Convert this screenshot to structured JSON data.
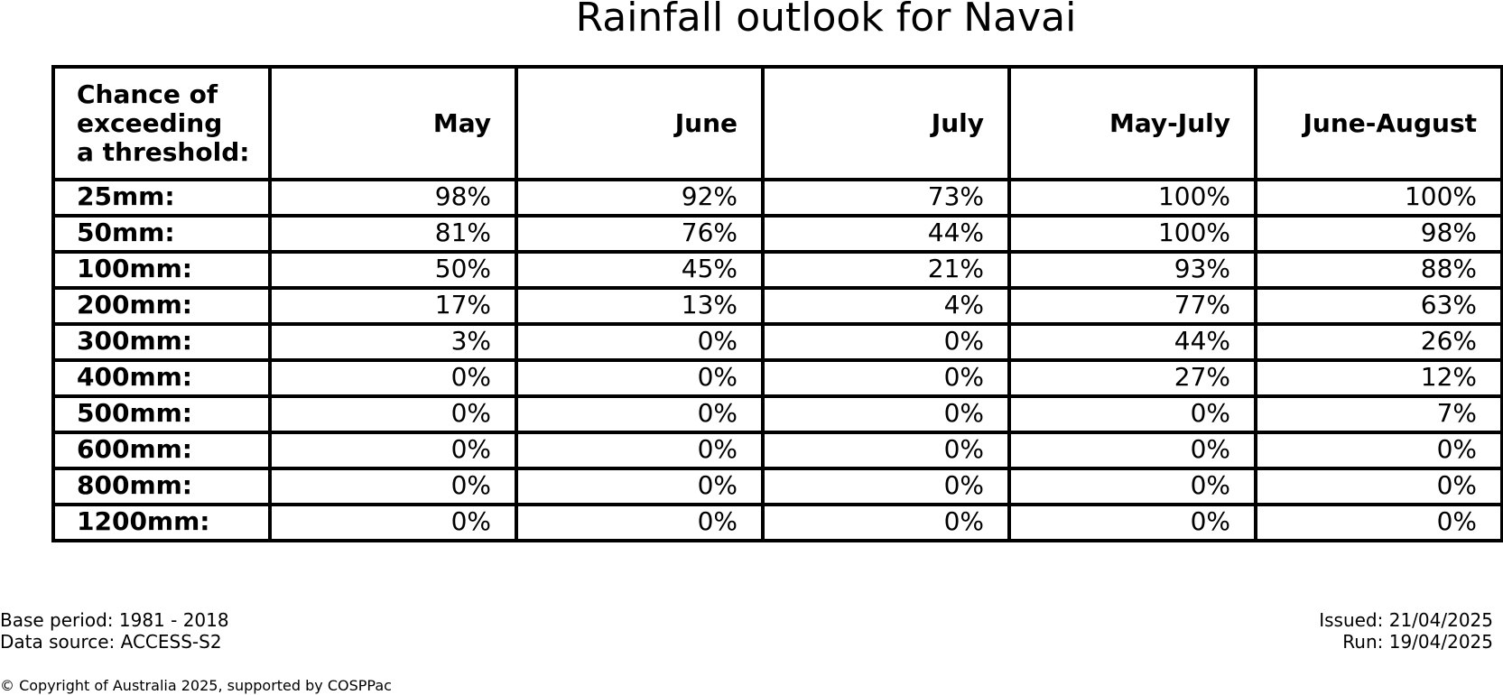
{
  "chart_data": {
    "type": "table",
    "title": "Rainfall outlook for Navai",
    "corner_header": [
      "Chance of",
      "exceeding",
      "a threshold:"
    ],
    "columns": [
      "May",
      "June",
      "July",
      "May-July",
      "June-August"
    ],
    "rows": [
      {
        "threshold": "25mm:",
        "values": [
          "98%",
          "92%",
          "73%",
          "100%",
          "100%"
        ]
      },
      {
        "threshold": "50mm:",
        "values": [
          "81%",
          "76%",
          "44%",
          "100%",
          "98%"
        ]
      },
      {
        "threshold": "100mm:",
        "values": [
          "50%",
          "45%",
          "21%",
          "93%",
          "88%"
        ]
      },
      {
        "threshold": "200mm:",
        "values": [
          "17%",
          "13%",
          "4%",
          "77%",
          "63%"
        ]
      },
      {
        "threshold": "300mm:",
        "values": [
          "3%",
          "0%",
          "0%",
          "44%",
          "26%"
        ]
      },
      {
        "threshold": "400mm:",
        "values": [
          "0%",
          "0%",
          "0%",
          "27%",
          "12%"
        ]
      },
      {
        "threshold": "500mm:",
        "values": [
          "0%",
          "0%",
          "0%",
          "0%",
          "7%"
        ]
      },
      {
        "threshold": "600mm:",
        "values": [
          "0%",
          "0%",
          "0%",
          "0%",
          "0%"
        ]
      },
      {
        "threshold": "800mm:",
        "values": [
          "0%",
          "0%",
          "0%",
          "0%",
          "0%"
        ]
      },
      {
        "threshold": "1200mm:",
        "values": [
          "0%",
          "0%",
          "0%",
          "0%",
          "0%"
        ]
      }
    ]
  },
  "footer": {
    "base_period": "Base period: 1981 - 2018",
    "data_source": "Data source: ACCESS-S2",
    "issued": "Issued: 21/04/2025",
    "run": "Run: 19/04/2025",
    "copyright": "© Copyright of Australia 2025, supported by COSPPac"
  }
}
